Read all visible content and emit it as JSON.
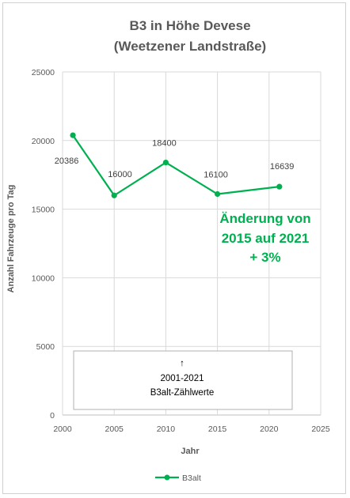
{
  "chart_data": {
    "type": "line",
    "title_lines": [
      "B3 in Höhe Devese",
      "(Weetzener Landstraße)"
    ],
    "xlabel": "Jahr",
    "ylabel": "Anzahl Fahrzeuge pro Tag",
    "xlim": [
      2000,
      2025
    ],
    "ylim": [
      0,
      25000
    ],
    "x_ticks": [
      2000,
      2005,
      2010,
      2015,
      2020,
      2025
    ],
    "y_ticks": [
      0,
      5000,
      10000,
      15000,
      20000,
      25000
    ],
    "grid": true,
    "legend_position": "bottom",
    "series": [
      {
        "name": "B3alt",
        "color": "#00b050",
        "x": [
          2001,
          2005,
          2010,
          2015,
          2021
        ],
        "y": [
          20386,
          16000,
          18400,
          16100,
          16639
        ],
        "labels": [
          "20386",
          "16000",
          "18400",
          "16100",
          "16639"
        ]
      }
    ],
    "annotations": {
      "change_lines": [
        "Änderung von",
        "2015 auf 2021",
        "+ 3%"
      ],
      "box_arrow": "↑",
      "box_lines": [
        "2001-2021",
        "B3alt-Zählwerte"
      ]
    }
  }
}
